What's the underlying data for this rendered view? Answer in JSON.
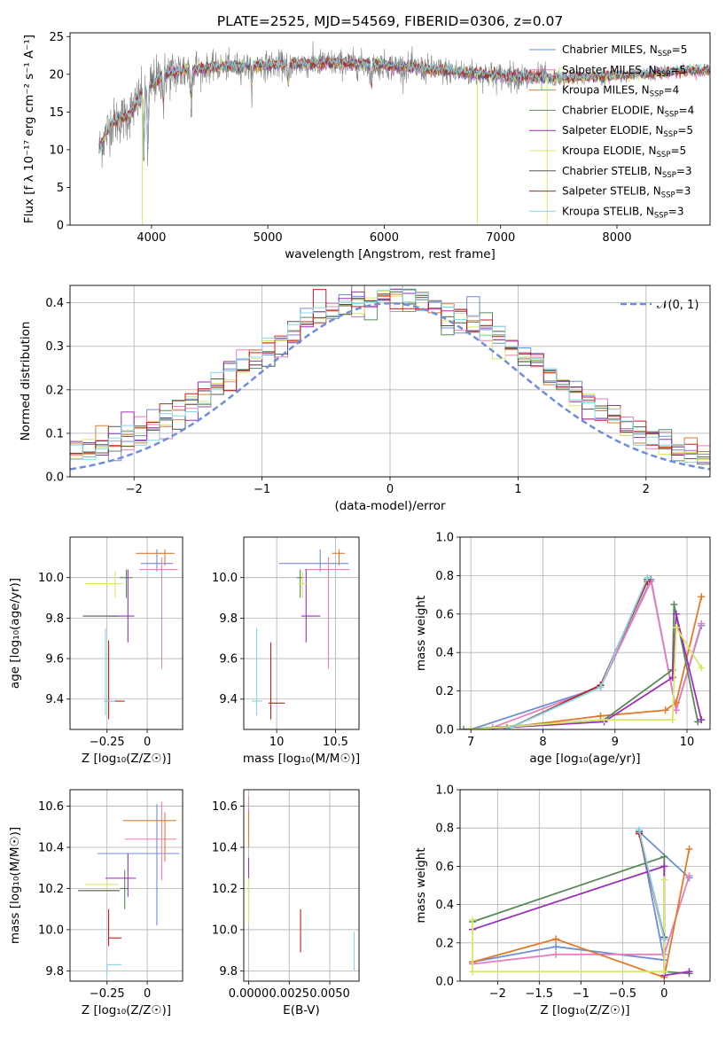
{
  "title": "PLATE=2525, MJD=54569, FIBERID=0306, z=0.07",
  "legend_sp": [
    {
      "label": "Chabrier MILES, N",
      "sub": "SSP",
      "tail": "=5",
      "color": "#6f8ed8"
    },
    {
      "label": "Salpeter MILES, N",
      "sub": "SSP",
      "tail": "=5",
      "color": "#e77fbd"
    },
    {
      "label": "Kroupa MILES, N",
      "sub": "SSP",
      "tail": "=4",
      "color": "#e07b2a"
    },
    {
      "label": "Chabrier ELODIE, N",
      "sub": "SSP",
      "tail": "=4",
      "color": "#5a8a5a"
    },
    {
      "label": "Salpeter ELODIE, N",
      "sub": "SSP",
      "tail": "=5",
      "color": "#9b2fb5"
    },
    {
      "label": "Kroupa ELODIE, N",
      "sub": "SSP",
      "tail": "=5",
      "color": "#d9e86a"
    },
    {
      "label": "Chabrier STELIB, N",
      "sub": "SSP",
      "tail": "=3",
      "color": "#555555"
    },
    {
      "label": "Salpeter STELIB, N",
      "sub": "SSP",
      "tail": "=3",
      "color": "#c0211f"
    },
    {
      "label": "Kroupa STELIB, N",
      "sub": "SSP",
      "tail": "=3",
      "color": "#86d6e6"
    }
  ],
  "legend_normal": "𝒩(0, 1)",
  "chart_data": [
    {
      "id": "spectrum",
      "type": "line",
      "xlabel": "wavelength [Angstrom, rest frame]",
      "ylabel": "Flux [f λ 10⁻¹⁷ erg cm⁻² s⁻¹ A⁻¹]",
      "xlim": [
        3300,
        8800
      ],
      "ylim": [
        0,
        25.5
      ],
      "xticks": [
        4000,
        5000,
        6000,
        7000,
        8000
      ],
      "yticks": [
        0,
        5,
        10,
        15,
        20,
        25
      ],
      "continuum": [
        [
          3550,
          10
        ],
        [
          3650,
          13.5
        ],
        [
          3800,
          14.5
        ],
        [
          3950,
          18
        ],
        [
          4100,
          20
        ],
        [
          4300,
          20.5
        ],
        [
          4600,
          21
        ],
        [
          5000,
          21.2
        ],
        [
          5500,
          21.5
        ],
        [
          6000,
          21.2
        ],
        [
          6500,
          20.5
        ],
        [
          7000,
          19.8
        ],
        [
          7500,
          19.5
        ],
        [
          8000,
          19.8
        ],
        [
          8600,
          20.5
        ]
      ],
      "noisy_range": [
        3550,
        7400
      ],
      "model_range": [
        3550,
        8800
      ],
      "dips": [
        [
          3934,
          8.5
        ],
        [
          3969,
          9.5
        ],
        [
          4102,
          16
        ],
        [
          4340,
          16.5
        ],
        [
          4861,
          18.5
        ],
        [
          5175,
          18.5
        ],
        [
          5890,
          18.5
        ]
      ],
      "spikes": [
        [
          3920,
          0
        ],
        [
          6800,
          0
        ],
        [
          7400,
          0
        ]
      ]
    },
    {
      "id": "residuals",
      "type": "histogram",
      "xlabel": "(data-model)/error",
      "ylabel": "Normed distribution",
      "xlim": [
        -2.5,
        2.5
      ],
      "ylim": [
        0,
        0.44
      ],
      "xticks": [
        -2,
        -1,
        0,
        1,
        2
      ],
      "yticks": [
        0.0,
        0.1,
        0.2,
        0.3,
        0.4
      ],
      "bin_width": 0.1
    },
    {
      "id": "age_vs_Z",
      "type": "scatter",
      "xlabel": "Z [log₁₀(Z/Z☉)]",
      "ylabel": "age  [log₁₀(age/yr)]",
      "xlim": [
        -0.48,
        0.22
      ],
      "ylim": [
        9.25,
        10.2
      ],
      "xticks": [
        -0.25,
        0.0
      ],
      "yticks": [
        9.4,
        9.6,
        9.8,
        10.0
      ],
      "points": [
        {
          "x": 0.06,
          "y": 10.07,
          "xerr": [
            0.1,
            0.1
          ],
          "yerr": [
            0.04,
            0.07
          ],
          "color": "#6f8ed8"
        },
        {
          "x": 0.09,
          "y": 10.04,
          "xerr": [
            0.14,
            0.1
          ],
          "yerr": [
            0.49,
            0.06
          ],
          "color": "#e77fbd"
        },
        {
          "x": 0.11,
          "y": 10.12,
          "xerr": [
            0.18,
            0.06
          ],
          "yerr": [
            0.06,
            0.02
          ],
          "color": "#e07b2a"
        },
        {
          "x": -0.13,
          "y": 10.0,
          "xerr": [
            0.04,
            0.04
          ],
          "yerr": [
            0.1,
            0.04
          ],
          "color": "#5a8a5a"
        },
        {
          "x": -0.12,
          "y": 9.81,
          "xerr": [
            0.12,
            0.04
          ],
          "yerr": [
            0.13,
            0.23
          ],
          "color": "#9b2fb5"
        },
        {
          "x": -0.2,
          "y": 9.97,
          "xerr": [
            0.19,
            0.05
          ],
          "yerr": [
            0.07,
            0.06
          ],
          "color": "#d9e86a"
        },
        {
          "x": -0.26,
          "y": 9.81,
          "xerr": [
            0.14,
            0.08
          ],
          "yerr": [
            0.0,
            0.0
          ],
          "color": "#555555"
        },
        {
          "x": -0.24,
          "y": 9.39,
          "xerr": [
            0.02,
            0.1
          ],
          "yerr": [
            0.09,
            0.3
          ],
          "color": "#c0211f"
        },
        {
          "x": -0.26,
          "y": 9.39,
          "xerr": [
            0.01,
            0.06
          ],
          "yerr": [
            0.07,
            0.36
          ],
          "color": "#86d6e6"
        }
      ]
    },
    {
      "id": "age_vs_mass",
      "type": "scatter",
      "xlabel": "mass [log₁₀(M/M☉)]",
      "ylabel": "",
      "xlim": [
        9.72,
        10.7
      ],
      "ylim": [
        9.25,
        10.2
      ],
      "xticks": [
        10.0,
        10.5
      ],
      "yticks": [
        9.4,
        9.6,
        9.8,
        10.0
      ],
      "points": [
        {
          "x": 10.37,
          "y": 10.07,
          "xerr": [
            0.35,
            0.24
          ],
          "yerr": [
            0.04,
            0.07
          ],
          "color": "#6f8ed8"
        },
        {
          "x": 10.44,
          "y": 10.04,
          "xerr": [
            0.2,
            0.18
          ],
          "yerr": [
            0.49,
            0.06
          ],
          "color": "#e77fbd"
        },
        {
          "x": 10.53,
          "y": 10.12,
          "xerr": [
            0.06,
            0.05
          ],
          "yerr": [
            0.06,
            0.02
          ],
          "color": "#e07b2a"
        },
        {
          "x": 10.2,
          "y": 10.0,
          "xerr": [
            0.03,
            0.03
          ],
          "yerr": [
            0.1,
            0.04
          ],
          "color": "#5a8a5a"
        },
        {
          "x": 10.25,
          "y": 9.81,
          "xerr": [
            0.04,
            0.12
          ],
          "yerr": [
            0.13,
            0.23
          ],
          "color": "#9b2fb5"
        },
        {
          "x": 10.22,
          "y": 9.97,
          "xerr": [
            0.04,
            0.04
          ],
          "yerr": [
            0.07,
            0.06
          ],
          "color": "#d9e86a"
        },
        {
          "x": 10.19,
          "y": 9.81,
          "xerr": [
            0.0,
            0.0
          ],
          "yerr": [
            0.0,
            0.0
          ],
          "color": "#555555"
        },
        {
          "x": 9.95,
          "y": 9.38,
          "xerr": [
            0.02,
            0.12
          ],
          "yerr": [
            0.08,
            0.3
          ],
          "color": "#c0211f"
        },
        {
          "x": 9.83,
          "y": 9.39,
          "xerr": [
            0.04,
            0.05
          ],
          "yerr": [
            0.07,
            0.36
          ],
          "color": "#86d6e6"
        }
      ]
    },
    {
      "id": "mass_weight_vs_age",
      "type": "line",
      "xlabel": "age  [log₁₀(age/yr)]",
      "ylabel": "mass weight",
      "xlim": [
        6.85,
        10.32
      ],
      "ylim": [
        0,
        1.0
      ],
      "xticks": [
        7,
        8,
        9,
        10
      ],
      "yticks": [
        0.0,
        0.2,
        0.4,
        0.6,
        0.8,
        1.0
      ],
      "series": [
        {
          "color": "#6f8ed8",
          "x": [
            7.0,
            8.8,
            9.5,
            9.85,
            10.2
          ],
          "y": [
            0.0,
            0.22,
            0.78,
            0.1,
            0.54
          ]
        },
        {
          "color": "#e77fbd",
          "x": [
            7.3,
            8.8,
            9.5,
            9.85,
            10.2
          ],
          "y": [
            0.01,
            0.22,
            0.77,
            0.1,
            0.55
          ]
        },
        {
          "color": "#e07b2a",
          "x": [
            7.5,
            8.8,
            9.7,
            9.85,
            10.2
          ],
          "y": [
            0.01,
            0.07,
            0.1,
            0.14,
            0.69
          ]
        },
        {
          "color": "#5a8a5a",
          "x": [
            6.9,
            8.85,
            9.8,
            9.82,
            10.15
          ],
          "y": [
            0.0,
            0.05,
            0.31,
            0.65,
            0.04
          ]
        },
        {
          "color": "#9b2fb5",
          "x": [
            7.0,
            8.85,
            9.8,
            9.85,
            10.2
          ],
          "y": [
            0.0,
            0.04,
            0.27,
            0.6,
            0.05
          ]
        },
        {
          "color": "#d9e86a",
          "x": [
            7.0,
            8.85,
            9.8,
            9.85,
            10.2
          ],
          "y": [
            0.0,
            0.05,
            0.05,
            0.53,
            0.32
          ]
        },
        {
          "color": "#555555",
          "x": [
            7.5,
            8.8,
            9.45
          ],
          "y": [
            0.0,
            0.23,
            0.78
          ]
        },
        {
          "color": "#c0211f",
          "x": [
            7.5,
            8.8,
            9.45
          ],
          "y": [
            0.0,
            0.23,
            0.77
          ]
        },
        {
          "color": "#86d6e6",
          "x": [
            7.5,
            8.8,
            9.45
          ],
          "y": [
            0.0,
            0.22,
            0.79
          ]
        }
      ]
    },
    {
      "id": "mass_vs_Z",
      "type": "scatter",
      "xlabel": "Z [log₁₀(Z/Z☉)]",
      "ylabel": "mass [log₁₀(M/M☉)]",
      "xlim": [
        -0.48,
        0.22
      ],
      "ylim": [
        9.75,
        10.68
      ],
      "xticks": [
        -0.25,
        0.0
      ],
      "yticks": [
        9.8,
        10.0,
        10.2,
        10.4,
        10.6
      ],
      "points": [
        {
          "x": 0.06,
          "y": 10.37,
          "xerr": [
            0.37,
            0.14
          ],
          "yerr": [
            0.35,
            0.24
          ],
          "color": "#6f8ed8"
        },
        {
          "x": 0.09,
          "y": 10.44,
          "xerr": [
            0.23,
            0.09
          ],
          "yerr": [
            0.2,
            0.18
          ],
          "color": "#e77fbd"
        },
        {
          "x": 0.11,
          "y": 10.53,
          "xerr": [
            0.26,
            0.07
          ],
          "yerr": [
            0.2,
            0.04
          ],
          "color": "#e07b2a"
        },
        {
          "x": -0.14,
          "y": 10.2,
          "xerr": [
            0.03,
            0.02
          ],
          "yerr": [
            0.1,
            0.09
          ],
          "color": "#5a8a5a"
        },
        {
          "x": -0.12,
          "y": 10.25,
          "xerr": [
            0.14,
            0.05
          ],
          "yerr": [
            0.09,
            0.12
          ],
          "color": "#9b2fb5"
        },
        {
          "x": -0.25,
          "y": 10.22,
          "xerr": [
            0.14,
            0.07
          ],
          "yerr": [
            0.05,
            0.02
          ],
          "color": "#d9e86a"
        },
        {
          "x": -0.26,
          "y": 10.19,
          "xerr": [
            0.17,
            0.09
          ],
          "yerr": [
            0.0,
            0.0
          ],
          "color": "#555555"
        },
        {
          "x": -0.24,
          "y": 9.96,
          "xerr": [
            0.0,
            0.08
          ],
          "yerr": [
            0.04,
            0.14
          ],
          "color": "#c0211f"
        },
        {
          "x": -0.25,
          "y": 9.83,
          "xerr": [
            0.0,
            0.09
          ],
          "yerr": [
            0.05,
            0.0
          ],
          "color": "#86d6e6"
        }
      ]
    },
    {
      "id": "mass_vs_ebv",
      "type": "scatter",
      "xlabel": "E(B-V)",
      "ylabel": "",
      "xlim": [
        -0.0003,
        0.0068
      ],
      "ylim": [
        9.75,
        10.68
      ],
      "xticks": [
        0.0,
        0.0025,
        0.005
      ],
      "xticklabels": [
        "0.0000",
        "0.0025",
        "0.0050"
      ],
      "yticks": [
        9.8,
        10.0,
        10.2,
        10.4,
        10.6
      ],
      "points": [
        {
          "x": 0.0,
          "y": 10.5,
          "xerr": [
            0,
            0
          ],
          "yerr": [
            0.05,
            0.15
          ],
          "color": "#e77fbd"
        },
        {
          "x": 0.0,
          "y": 10.5,
          "xerr": [
            0,
            0
          ],
          "yerr": [
            0.1,
            0.08
          ],
          "color": "#e07b2a"
        },
        {
          "x": 0.0,
          "y": 10.25,
          "xerr": [
            0,
            0
          ],
          "yerr": [
            0.2,
            0.1
          ],
          "color": "#9b2fb5"
        },
        {
          "x": 0.0,
          "y": 10.15,
          "xerr": [
            0,
            0
          ],
          "yerr": [
            0.12,
            0.1
          ],
          "color": "#d9e86a"
        },
        {
          "x": 0.0032,
          "y": 9.98,
          "xerr": [
            0,
            0
          ],
          "yerr": [
            0.09,
            0.12
          ],
          "color": "#c0211f"
        },
        {
          "x": 0.0065,
          "y": 9.88,
          "xerr": [
            0,
            0
          ],
          "yerr": [
            0.08,
            0.11
          ],
          "color": "#86d6e6"
        }
      ]
    },
    {
      "id": "mass_weight_vs_Z",
      "type": "line",
      "xlabel": "Z [log₁₀(Z/Z☉)]",
      "ylabel": "mass weight",
      "xlim": [
        -2.45,
        0.55
      ],
      "ylim": [
        0,
        1.0
      ],
      "xticks": [
        -2.0,
        -1.5,
        -1.0,
        -0.5,
        0.0
      ],
      "yticks": [
        0.0,
        0.2,
        0.4,
        0.6,
        0.8,
        1.0
      ],
      "series": [
        {
          "color": "#6f8ed8",
          "x": [
            -2.3,
            -1.3,
            0.0,
            -0.3,
            0.3
          ],
          "y": [
            0.1,
            0.18,
            0.11,
            0.78,
            0.54
          ]
        },
        {
          "color": "#e77fbd",
          "x": [
            -2.3,
            -1.3,
            0.0,
            0.3
          ],
          "y": [
            0.09,
            0.14,
            0.14,
            0.55
          ]
        },
        {
          "color": "#e07b2a",
          "x": [
            -2.3,
            -1.3,
            0.0,
            0.3
          ],
          "y": [
            0.1,
            0.22,
            0.02,
            0.69
          ]
        },
        {
          "color": "#5a8a5a",
          "x": [
            -2.3,
            0.0,
            0.0,
            0.3
          ],
          "y": [
            0.31,
            0.65,
            0.05,
            0.04
          ]
        },
        {
          "color": "#9b2fb5",
          "x": [
            -2.3,
            0.0,
            0.0,
            0.3
          ],
          "y": [
            0.27,
            0.6,
            0.03,
            0.05
          ]
        },
        {
          "color": "#d9e86a",
          "x": [
            -2.3,
            -2.3,
            0.0,
            0.0
          ],
          "y": [
            0.32,
            0.05,
            0.05,
            0.53
          ]
        },
        {
          "color": "#555555",
          "x": [
            -0.3,
            0.0
          ],
          "y": [
            0.78,
            0.23
          ]
        },
        {
          "color": "#c0211f",
          "x": [
            -0.3,
            0.0
          ],
          "y": [
            0.77,
            0.22
          ]
        },
        {
          "color": "#86d6e6",
          "x": [
            -0.3,
            0.0
          ],
          "y": [
            0.79,
            0.22
          ]
        }
      ]
    }
  ]
}
